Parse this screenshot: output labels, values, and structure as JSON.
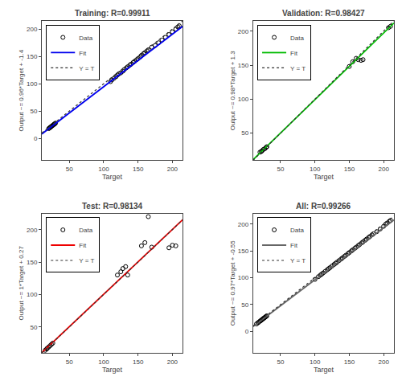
{
  "chart_data": [
    {
      "type": "scatter",
      "title": "Training: R=0.99911",
      "xlabel": "Target",
      "ylabel": "Output ~= 0.96*Target + -1.4",
      "xlim": [
        10,
        215
      ],
      "ylim": [
        -40,
        215
      ],
      "xticks": [
        50,
        100,
        150,
        200
      ],
      "yticks": [
        0,
        50,
        100,
        150,
        200
      ],
      "grid": false,
      "legend": "upper left",
      "series": [
        {
          "name": "Data",
          "type": "scatter",
          "marker": "circle-open",
          "color": "#000000",
          "x": [
            20,
            21,
            22,
            23,
            24,
            25,
            26,
            27,
            28,
            29,
            30,
            110,
            112,
            115,
            118,
            120,
            122,
            125,
            128,
            130,
            133,
            135,
            138,
            140,
            143,
            145,
            148,
            150,
            153,
            155,
            158,
            160,
            163,
            165,
            170,
            175,
            180,
            185,
            190,
            195,
            200,
            205,
            208,
            210
          ],
          "values": [
            18,
            19,
            20,
            21,
            22,
            23,
            24,
            25,
            26,
            27,
            28,
            104,
            107,
            110,
            113,
            116,
            118,
            120,
            123,
            126,
            129,
            131,
            134,
            136,
            139,
            141,
            144,
            146,
            149,
            152,
            155,
            157,
            160,
            162,
            167,
            170,
            175,
            180,
            185,
            190,
            195,
            200,
            204,
            206
          ]
        },
        {
          "name": "Fit",
          "type": "line",
          "line_style": "solid",
          "color": "#0000EE",
          "x": [
            10,
            215
          ],
          "values": [
            8.2,
            205.0
          ]
        },
        {
          "name": "Y = T",
          "type": "line",
          "line_style": "dotted",
          "color": "#333333",
          "x": [
            10,
            215
          ],
          "values": [
            10,
            215
          ]
        }
      ]
    },
    {
      "type": "scatter",
      "title": "Validation: R=0.98427",
      "xlabel": "Target",
      "ylabel": "Output ~= 0.98*Target + 1.3",
      "xlim": [
        10,
        215
      ],
      "ylim": [
        10,
        215
      ],
      "xticks": [
        50,
        100,
        150,
        200
      ],
      "yticks": [
        50,
        100,
        150,
        200
      ],
      "grid": false,
      "legend": "upper left",
      "series": [
        {
          "name": "Data",
          "type": "scatter",
          "marker": "circle-open",
          "color": "#000000",
          "x": [
            20,
            22,
            23,
            25,
            27,
            29,
            30,
            150,
            155,
            160,
            163,
            167,
            170,
            207,
            210
          ],
          "values": [
            22,
            23,
            24,
            26,
            27,
            29,
            30,
            148,
            155,
            160,
            158,
            157,
            158,
            205,
            207
          ]
        },
        {
          "name": "Fit",
          "type": "line",
          "line_style": "solid",
          "color": "#00BB00",
          "x": [
            10,
            215
          ],
          "values": [
            11.1,
            212.0
          ]
        },
        {
          "name": "Y = T",
          "type": "line",
          "line_style": "dotted",
          "color": "#333333",
          "x": [
            10,
            215
          ],
          "values": [
            10,
            215
          ]
        }
      ]
    },
    {
      "type": "scatter",
      "title": "Test: R=0.98134",
      "xlabel": "Target",
      "ylabel": "Output ~= 1*Target + 0.27",
      "xlim": [
        10,
        215
      ],
      "ylim": [
        10,
        225
      ],
      "xticks": [
        50,
        100,
        150,
        200
      ],
      "yticks": [
        50,
        100,
        150,
        200
      ],
      "grid": false,
      "legend": "upper left",
      "series": [
        {
          "name": "Data",
          "type": "scatter",
          "marker": "circle-open",
          "color": "#000000",
          "x": [
            15,
            17,
            18,
            20,
            22,
            24,
            26,
            120,
            125,
            128,
            132,
            135,
            155,
            160,
            165,
            170,
            195,
            200,
            205
          ],
          "values": [
            14,
            16,
            17,
            19,
            21,
            23,
            25,
            130,
            135,
            140,
            143,
            130,
            175,
            180,
            220,
            173,
            172,
            176,
            175
          ]
        },
        {
          "name": "Fit",
          "type": "line",
          "line_style": "solid",
          "color": "#EE0000",
          "x": [
            10,
            215
          ],
          "values": [
            10.27,
            215.27
          ]
        },
        {
          "name": "Y = T",
          "type": "line",
          "line_style": "dotted",
          "color": "#333333",
          "x": [
            10,
            215
          ],
          "values": [
            10,
            215
          ]
        }
      ]
    },
    {
      "type": "scatter",
      "title": "All: R=0.99266",
      "xlabel": "Target",
      "ylabel": "Output ~= 0.97*Target + -0.55",
      "xlim": [
        10,
        215
      ],
      "ylim": [
        -40,
        220
      ],
      "xticks": [
        50,
        100,
        150,
        200
      ],
      "yticks": [
        0,
        50,
        100,
        150,
        200
      ],
      "grid": false,
      "legend": "upper left",
      "series": [
        {
          "name": "Data",
          "type": "scatter",
          "marker": "circle-open",
          "color": "#000000",
          "x": [
            15,
            17,
            18,
            20,
            21,
            22,
            23,
            24,
            25,
            26,
            27,
            28,
            29,
            30,
            100,
            105,
            108,
            110,
            112,
            115,
            118,
            120,
            122,
            125,
            128,
            130,
            132,
            135,
            138,
            140,
            143,
            145,
            148,
            150,
            153,
            155,
            158,
            160,
            163,
            165,
            168,
            170,
            173,
            175,
            178,
            180,
            183,
            185,
            190,
            195,
            200,
            203,
            205,
            208,
            210
          ],
          "values": [
            14,
            16,
            17,
            19,
            20,
            21,
            22,
            23,
            24,
            25,
            26,
            27,
            28,
            29,
            97,
            102,
            105,
            107,
            109,
            112,
            115,
            117,
            119,
            122,
            125,
            127,
            129,
            132,
            135,
            137,
            140,
            142,
            145,
            147,
            150,
            152,
            155,
            157,
            160,
            162,
            165,
            167,
            170,
            172,
            175,
            177,
            180,
            182,
            186,
            191,
            196,
            200,
            202,
            205,
            207
          ]
        },
        {
          "name": "Fit",
          "type": "line",
          "line_style": "solid",
          "color": "#666666",
          "x": [
            10,
            215
          ],
          "values": [
            9.15,
            208.0
          ]
        },
        {
          "name": "Y = T",
          "type": "line",
          "line_style": "dotted",
          "color": "#333333",
          "x": [
            10,
            215
          ],
          "values": [
            10,
            215
          ]
        }
      ]
    }
  ]
}
